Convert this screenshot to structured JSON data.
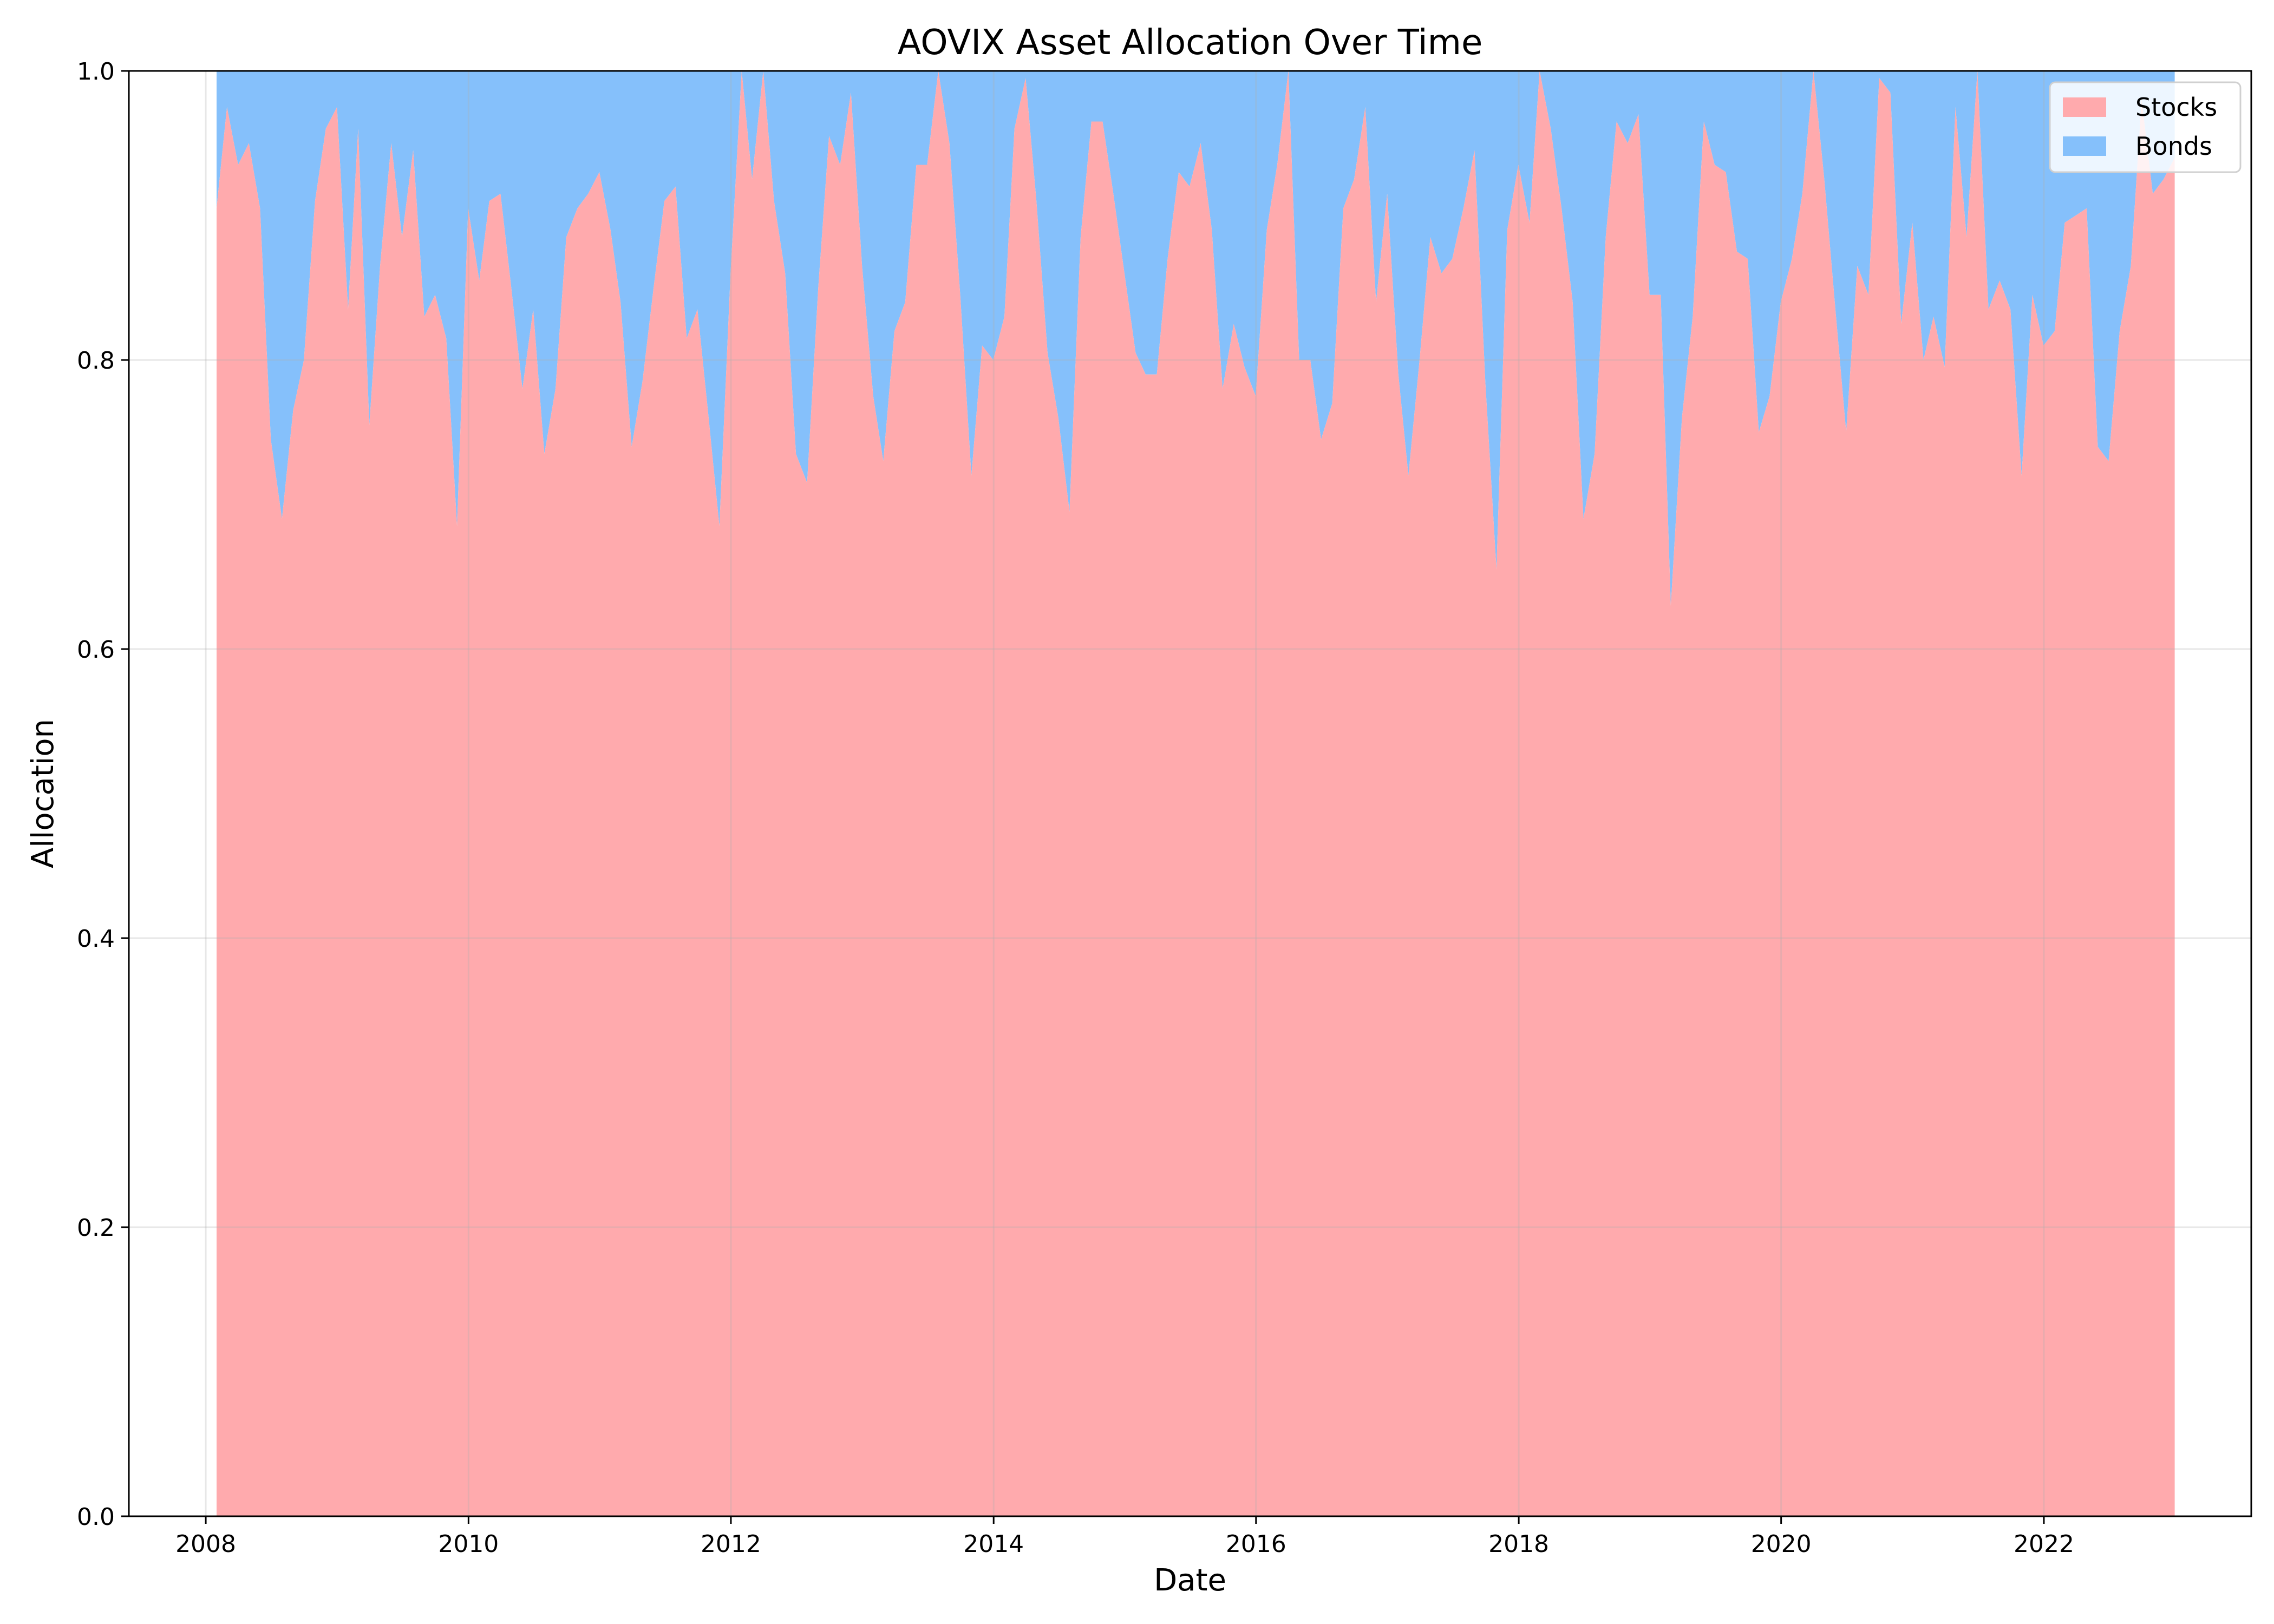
{
  "chart_data": {
    "type": "area",
    "stacked": true,
    "title": "AOVIX Asset Allocation Over Time",
    "xlabel": "Date",
    "ylabel": "Allocation",
    "xlim": [
      "2007-06-01",
      "2023-08-01"
    ],
    "ylim": [
      0,
      1
    ],
    "x_ticks": [
      "2008",
      "2010",
      "2012",
      "2014",
      "2016",
      "2018",
      "2020",
      "2022"
    ],
    "y_ticks": [
      "0.0",
      "0.2",
      "0.4",
      "0.6",
      "0.8",
      "1.0"
    ],
    "grid": true,
    "legend_position": "top-right",
    "colors": {
      "stocks": "#ffaaad",
      "bonds": "#85c0fb"
    },
    "x": [
      "2008-01-31",
      "2008-02-29",
      "2008-03-31",
      "2008-04-30",
      "2008-05-31",
      "2008-06-30",
      "2008-07-31",
      "2008-08-31",
      "2008-09-30",
      "2008-10-31",
      "2008-11-30",
      "2008-12-31",
      "2009-01-31",
      "2009-02-28",
      "2009-03-31",
      "2009-04-30",
      "2009-05-31",
      "2009-06-30",
      "2009-07-31",
      "2009-08-31",
      "2009-09-30",
      "2009-10-31",
      "2009-11-30",
      "2009-12-31",
      "2010-01-31",
      "2010-02-28",
      "2010-03-31",
      "2010-04-30",
      "2010-05-31",
      "2010-06-30",
      "2010-07-31",
      "2010-08-31",
      "2010-09-30",
      "2010-10-31",
      "2010-11-30",
      "2010-12-31",
      "2011-01-31",
      "2011-02-28",
      "2011-03-31",
      "2011-04-30",
      "2011-05-31",
      "2011-06-30",
      "2011-07-31",
      "2011-08-31",
      "2011-09-30",
      "2011-10-31",
      "2011-11-30",
      "2011-12-31",
      "2012-01-31",
      "2012-02-29",
      "2012-03-31",
      "2012-04-30",
      "2012-05-31",
      "2012-06-30",
      "2012-07-31",
      "2012-08-31",
      "2012-09-30",
      "2012-10-31",
      "2012-11-30",
      "2012-12-31",
      "2013-01-31",
      "2013-02-28",
      "2013-03-31",
      "2013-04-30",
      "2013-05-31",
      "2013-06-30",
      "2013-07-31",
      "2013-08-31",
      "2013-09-30",
      "2013-10-31",
      "2013-11-30",
      "2013-12-31",
      "2014-01-31",
      "2014-02-28",
      "2014-03-31",
      "2014-04-30",
      "2014-05-31",
      "2014-06-30",
      "2014-07-31",
      "2014-08-31",
      "2014-09-30",
      "2014-10-31",
      "2014-11-30",
      "2014-12-31",
      "2015-01-31",
      "2015-02-28",
      "2015-03-31",
      "2015-04-30",
      "2015-05-31",
      "2015-06-30",
      "2015-07-31",
      "2015-08-31",
      "2015-09-30",
      "2015-10-31",
      "2015-11-30",
      "2015-12-31",
      "2016-01-31",
      "2016-02-29",
      "2016-03-31",
      "2016-04-30",
      "2016-05-31",
      "2016-06-30",
      "2016-07-31",
      "2016-08-31",
      "2016-09-30",
      "2016-10-31",
      "2016-11-30",
      "2016-12-31",
      "2017-01-31",
      "2017-02-28",
      "2017-03-31",
      "2017-04-30",
      "2017-05-31",
      "2017-06-30",
      "2017-07-31",
      "2017-08-31",
      "2017-09-30",
      "2017-10-31",
      "2017-11-30",
      "2017-12-31",
      "2018-01-31",
      "2018-02-28",
      "2018-03-31",
      "2018-04-30",
      "2018-05-31",
      "2018-06-30",
      "2018-07-31",
      "2018-08-31",
      "2018-09-30",
      "2018-10-31",
      "2018-11-30",
      "2018-12-31",
      "2019-01-31",
      "2019-02-28",
      "2019-03-31",
      "2019-04-30",
      "2019-05-31",
      "2019-06-30",
      "2019-07-31",
      "2019-08-31",
      "2019-09-30",
      "2019-10-31",
      "2019-11-30",
      "2019-12-31",
      "2020-01-31",
      "2020-02-29",
      "2020-03-31",
      "2020-04-30",
      "2020-05-31",
      "2020-06-30",
      "2020-07-31",
      "2020-08-31",
      "2020-09-30",
      "2020-10-31",
      "2020-11-30",
      "2020-12-31",
      "2021-01-31",
      "2021-02-28",
      "2021-03-31",
      "2021-04-30",
      "2021-05-31",
      "2021-06-30",
      "2021-07-31",
      "2021-08-31",
      "2021-09-30",
      "2021-10-31",
      "2021-11-30",
      "2021-12-31",
      "2022-01-31",
      "2022-02-28",
      "2022-03-31",
      "2022-04-30",
      "2022-05-31",
      "2022-06-30",
      "2022-07-31",
      "2022-08-31",
      "2022-09-30",
      "2022-10-31",
      "2022-11-30",
      "2022-12-31"
    ],
    "series": [
      {
        "name": "Stocks",
        "values": [
          0.905,
          0.975,
          0.935,
          0.95,
          0.905,
          0.745,
          0.69,
          0.765,
          0.8,
          0.91,
          0.96,
          0.975,
          0.835,
          0.96,
          0.755,
          0.865,
          0.95,
          0.885,
          0.945,
          0.83,
          0.845,
          0.815,
          0.685,
          0.905,
          0.855,
          0.91,
          0.915,
          0.85,
          0.78,
          0.835,
          0.735,
          0.78,
          0.885,
          0.905,
          0.915,
          0.93,
          0.89,
          0.84,
          0.74,
          0.785,
          0.85,
          0.91,
          0.92,
          0.815,
          0.835,
          0.76,
          0.685,
          0.86,
          1.0,
          0.925,
          1.0,
          0.91,
          0.86,
          0.735,
          0.715,
          0.85,
          0.955,
          0.935,
          0.985,
          0.865,
          0.775,
          0.73,
          0.82,
          0.84,
          0.935,
          0.935,
          1.0,
          0.95,
          0.845,
          0.72,
          0.81,
          0.8,
          0.83,
          0.96,
          0.995,
          0.91,
          0.805,
          0.76,
          0.695,
          0.885,
          0.965,
          0.965,
          0.915,
          0.86,
          0.805,
          0.79,
          0.79,
          0.87,
          0.93,
          0.92,
          0.95,
          0.89,
          0.78,
          0.825,
          0.795,
          0.775,
          0.89,
          0.935,
          1.0,
          0.8,
          0.8,
          0.745,
          0.77,
          0.905,
          0.925,
          0.975,
          0.84,
          0.915,
          0.79,
          0.72,
          0.8,
          0.885,
          0.86,
          0.87,
          0.905,
          0.945,
          0.785,
          0.655,
          0.89,
          0.935,
          0.895,
          1.0,
          0.96,
          0.905,
          0.84,
          0.69,
          0.735,
          0.885,
          0.965,
          0.95,
          0.97,
          0.845,
          0.845,
          0.63,
          0.76,
          0.83,
          0.965,
          0.935,
          0.93,
          0.875,
          0.87,
          0.75,
          0.775,
          0.84,
          0.87,
          0.915,
          1.0,
          0.925,
          0.835,
          0.75,
          0.865,
          0.845,
          0.995,
          0.985,
          0.825,
          0.895,
          0.8,
          0.83,
          0.795,
          0.975,
          0.885,
          1.0,
          0.835,
          0.855,
          0.835,
          0.72,
          0.845,
          0.81,
          0.82,
          0.895,
          0.9,
          0.905,
          0.74,
          0.73,
          0.82,
          0.865,
          0.98,
          0.915,
          0.925,
          0.94
        ]
      },
      {
        "name": "Bonds",
        "values": [
          0.095,
          0.025,
          0.065,
          0.05,
          0.095,
          0.255,
          0.31,
          0.235,
          0.2,
          0.09,
          0.04,
          0.025,
          0.165,
          0.04,
          0.245,
          0.135,
          0.05,
          0.115,
          0.055,
          0.17,
          0.155,
          0.185,
          0.315,
          0.095,
          0.145,
          0.09,
          0.085,
          0.15,
          0.22,
          0.165,
          0.265,
          0.22,
          0.115,
          0.095,
          0.085,
          0.07,
          0.11,
          0.16,
          0.26,
          0.215,
          0.15,
          0.09,
          0.08,
          0.185,
          0.165,
          0.24,
          0.315,
          0.14,
          0.0,
          0.075,
          0.0,
          0.09,
          0.14,
          0.265,
          0.285,
          0.15,
          0.045,
          0.065,
          0.015,
          0.135,
          0.225,
          0.27,
          0.18,
          0.16,
          0.065,
          0.065,
          0.0,
          0.05,
          0.155,
          0.28,
          0.19,
          0.2,
          0.17,
          0.04,
          0.005,
          0.09,
          0.195,
          0.24,
          0.305,
          0.115,
          0.035,
          0.035,
          0.085,
          0.14,
          0.195,
          0.21,
          0.21,
          0.13,
          0.07,
          0.08,
          0.05,
          0.11,
          0.22,
          0.175,
          0.205,
          0.225,
          0.11,
          0.065,
          0.0,
          0.2,
          0.2,
          0.255,
          0.23,
          0.095,
          0.075,
          0.025,
          0.16,
          0.085,
          0.21,
          0.28,
          0.2,
          0.115,
          0.14,
          0.13,
          0.095,
          0.055,
          0.215,
          0.345,
          0.11,
          0.065,
          0.105,
          0.0,
          0.04,
          0.095,
          0.16,
          0.31,
          0.265,
          0.115,
          0.035,
          0.05,
          0.03,
          0.155,
          0.155,
          0.37,
          0.24,
          0.17,
          0.035,
          0.065,
          0.07,
          0.125,
          0.13,
          0.25,
          0.225,
          0.16,
          0.13,
          0.085,
          0.0,
          0.075,
          0.165,
          0.25,
          0.135,
          0.155,
          0.005,
          0.015,
          0.175,
          0.105,
          0.2,
          0.17,
          0.205,
          0.025,
          0.115,
          0.0,
          0.165,
          0.145,
          0.165,
          0.28,
          0.155,
          0.19,
          0.18,
          0.105,
          0.1,
          0.095,
          0.26,
          0.27,
          0.18,
          0.135,
          0.02,
          0.085,
          0.075,
          0.06
        ]
      }
    ]
  }
}
